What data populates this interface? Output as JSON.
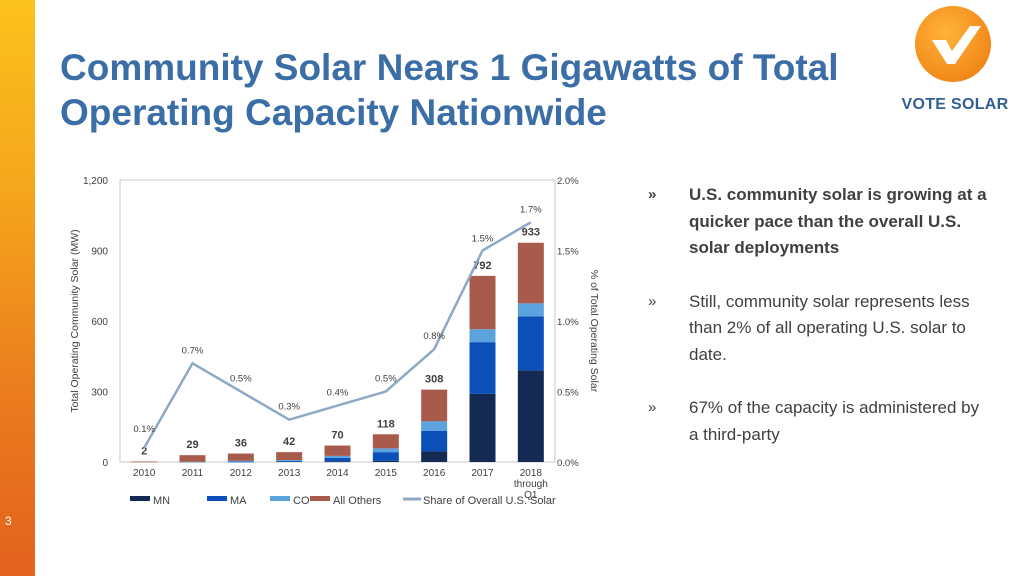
{
  "slide": {
    "title": "Community Solar Nears 1 Gigawatts of Total Operating Capacity Nationwide",
    "page_number": "3"
  },
  "logo": {
    "text": "VOTE SOLAR",
    "icon": "checkmark-icon"
  },
  "bullets": [
    {
      "marker": "»",
      "text": "U.S. community solar is growing at a quicker pace than the overall U.S. solar deployments",
      "bold": true
    },
    {
      "marker": "»",
      "text": "Still, community solar represents less than 2% of all operating U.S. solar to date.",
      "bold": false
    },
    {
      "marker": "»",
      "text": "67% of the capacity is administered by a third-party",
      "bold": false
    }
  ],
  "chart_data": {
    "type": "bar",
    "stacked": true,
    "categories": [
      "2010",
      "2011",
      "2012",
      "2013",
      "2014",
      "2015",
      "2016",
      "2017",
      "2018 through Q1"
    ],
    "series": [
      {
        "name": "MN",
        "color": "#142a52",
        "values": [
          0,
          0,
          0,
          0,
          3,
          5,
          45,
          290,
          390
        ]
      },
      {
        "name": "MA",
        "color": "#0b4fb8",
        "values": [
          0,
          0,
          2,
          4,
          15,
          37,
          88,
          220,
          230
        ]
      },
      {
        "name": "CO",
        "color": "#5ba3df",
        "values": [
          0,
          1,
          3,
          4,
          8,
          16,
          40,
          55,
          55
        ]
      },
      {
        "name": "All Others",
        "color": "#a85b4b",
        "values": [
          2,
          28,
          31,
          34,
          44,
          60,
          135,
          227,
          258
        ]
      }
    ],
    "totals": [
      2,
      29,
      36,
      42,
      70,
      118,
      308,
      792,
      933
    ],
    "line_series": {
      "name": "Share of Overall U.S. Solar",
      "color": "#8ea9c6",
      "values": [
        0.1,
        0.7,
        0.5,
        0.3,
        0.4,
        0.5,
        0.8,
        1.5,
        1.7
      ],
      "labels": [
        "0.1%",
        "0.7%",
        "0.5%",
        "0.3%",
        "0.4%",
        "0.5%",
        "0.8%",
        "1.5%",
        "1.7%"
      ]
    },
    "ylabel": "Total Operating Community Solar (MW)",
    "ylim": [
      0,
      1200
    ],
    "yticks": [
      0,
      300,
      600,
      900,
      1200
    ],
    "ytick_labels": [
      "0",
      "300",
      "600",
      "900",
      "1,200"
    ],
    "y2label": "% of Total Operating Solar",
    "y2lim": [
      0,
      2.0
    ],
    "y2ticks": [
      0,
      0.5,
      1.0,
      1.5,
      2.0
    ],
    "y2tick_labels": [
      "0.0%",
      "0.5%",
      "1.0%",
      "1.5%",
      "2.0%"
    ],
    "legend": [
      "MN",
      "MA",
      "CO",
      "All Others",
      "Share of Overall U.S. Solar"
    ],
    "legend_position": "bottom"
  }
}
